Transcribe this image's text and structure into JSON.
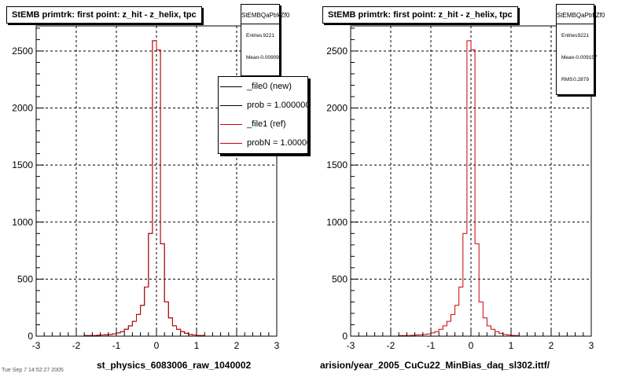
{
  "panels": [
    {
      "title": "StEMB primtrk: first point: z_hit - z_helix, tpc",
      "stats": {
        "name": "StEMBQaPtrkZf0",
        "rows": [
          {
            "label": "Entries",
            "value": "9221"
          },
          {
            "label": "Mean",
            "value": "-0.009093"
          }
        ]
      },
      "xtitle": "st_physics_6083006_raw_1040002"
    },
    {
      "title": "StEMB primtrk: first point: z_hit - z_helix, tpc",
      "stats": {
        "name": "StEMBQaPtrkZf0",
        "rows": [
          {
            "label": "Entries",
            "value": "9221"
          },
          {
            "label": "Mean",
            "value": "-0.009157"
          },
          {
            "label": "RMS",
            "value": "0.2879"
          }
        ]
      },
      "xtitle": "arision/year_2005_CuCu22_MinBias_daq_sl302.ittf/"
    }
  ],
  "legend": {
    "entries": [
      {
        "label": "_file0 (new)",
        "color": "#000000"
      },
      {
        "label": "prob = 1.000000",
        "color": "#000000"
      },
      {
        "label": "_file1 (ref)",
        "color": "#cc0000"
      },
      {
        "label": "probN = 1.000000",
        "color": "#cc0000"
      }
    ]
  },
  "corner_text": "Tue Sep 7 14:52:27 2005",
  "chart_data": [
    {
      "type": "line",
      "title": "StEMB primtrk: first point: z_hit - z_helix, tpc",
      "xlabel": "st_physics_6083006_raw_1040002",
      "ylabel": "",
      "xlim": [
        -3,
        3
      ],
      "ylim": [
        0,
        2720
      ],
      "xticks": [
        -3,
        -2,
        -1,
        0,
        1,
        2,
        3
      ],
      "yticks": [
        0,
        500,
        1000,
        1500,
        2000,
        2500
      ],
      "grid": true,
      "bin_width": 0.1,
      "series": [
        {
          "name": "_file0 (new)",
          "color": "#000000",
          "x": [
            -3.0,
            -2.9,
            -2.8,
            -2.7,
            -2.6,
            -2.5,
            -2.4,
            -2.3,
            -2.2,
            -2.1,
            -2.0,
            -1.9,
            -1.8,
            -1.7,
            -1.6,
            -1.5,
            -1.4,
            -1.3,
            -1.2,
            -1.1,
            -1.0,
            -0.9,
            -0.8,
            -0.7,
            -0.6,
            -0.5,
            -0.4,
            -0.3,
            -0.2,
            -0.1,
            0.0,
            0.1,
            0.2,
            0.3,
            0.4,
            0.5,
            0.6,
            0.7,
            0.8,
            0.9,
            1.0,
            1.1,
            1.2,
            1.3,
            1.4,
            1.5,
            1.6,
            1.7,
            1.8,
            1.9,
            2.0,
            2.1,
            2.2,
            2.3,
            2.4,
            2.5,
            2.6,
            2.7,
            2.8,
            2.9
          ],
          "values": [
            0,
            0,
            0,
            0,
            0,
            0,
            0,
            0,
            0,
            0,
            0,
            0,
            5,
            5,
            5,
            8,
            10,
            12,
            15,
            20,
            28,
            40,
            60,
            90,
            130,
            190,
            270,
            430,
            900,
            2590,
            2510,
            810,
            300,
            160,
            90,
            60,
            40,
            25,
            15,
            10,
            7,
            5,
            0,
            0,
            0,
            0,
            0,
            0,
            0,
            0,
            0,
            0,
            0,
            0,
            0,
            0,
            0,
            0,
            0,
            0
          ]
        },
        {
          "name": "_file1 (ref)",
          "color": "#cc0000",
          "x": [
            -3.0,
            -2.9,
            -2.8,
            -2.7,
            -2.6,
            -2.5,
            -2.4,
            -2.3,
            -2.2,
            -2.1,
            -2.0,
            -1.9,
            -1.8,
            -1.7,
            -1.6,
            -1.5,
            -1.4,
            -1.3,
            -1.2,
            -1.1,
            -1.0,
            -0.9,
            -0.8,
            -0.7,
            -0.6,
            -0.5,
            -0.4,
            -0.3,
            -0.2,
            -0.1,
            0.0,
            0.1,
            0.2,
            0.3,
            0.4,
            0.5,
            0.6,
            0.7,
            0.8,
            0.9,
            1.0,
            1.1,
            1.2,
            1.3,
            1.4,
            1.5,
            1.6,
            1.7,
            1.8,
            1.9,
            2.0,
            2.1,
            2.2,
            2.3,
            2.4,
            2.5,
            2.6,
            2.7,
            2.8,
            2.9
          ],
          "values": [
            0,
            0,
            0,
            0,
            0,
            0,
            0,
            0,
            0,
            0,
            0,
            0,
            5,
            5,
            5,
            8,
            10,
            12,
            15,
            20,
            28,
            40,
            60,
            90,
            130,
            190,
            270,
            430,
            900,
            2590,
            2510,
            810,
            300,
            160,
            90,
            60,
            40,
            25,
            15,
            10,
            7,
            5,
            0,
            0,
            0,
            0,
            0,
            0,
            0,
            0,
            0,
            0,
            0,
            0,
            0,
            0,
            0,
            0,
            0,
            0
          ]
        }
      ]
    },
    {
      "type": "line",
      "title": "StEMB primtrk: first point: z_hit - z_helix, tpc",
      "xlabel": "arision/year_2005_CuCu22_MinBias_daq_sl302.ittf/",
      "ylabel": "",
      "xlim": [
        -3,
        3
      ],
      "ylim": [
        0,
        2720
      ],
      "xticks": [
        -3,
        -2,
        -1,
        0,
        1,
        2,
        3
      ],
      "yticks": [
        0,
        500,
        1000,
        1500,
        2000,
        2500
      ],
      "grid": true,
      "bin_width": 0.1,
      "series": [
        {
          "name": "",
          "color": "#cc0000",
          "x": [
            -3.0,
            -2.9,
            -2.8,
            -2.7,
            -2.6,
            -2.5,
            -2.4,
            -2.3,
            -2.2,
            -2.1,
            -2.0,
            -1.9,
            -1.8,
            -1.7,
            -1.6,
            -1.5,
            -1.4,
            -1.3,
            -1.2,
            -1.1,
            -1.0,
            -0.9,
            -0.8,
            -0.7,
            -0.6,
            -0.5,
            -0.4,
            -0.3,
            -0.2,
            -0.1,
            0.0,
            0.1,
            0.2,
            0.3,
            0.4,
            0.5,
            0.6,
            0.7,
            0.8,
            0.9,
            1.0,
            1.1,
            1.2,
            1.3,
            1.4,
            1.5,
            1.6,
            1.7,
            1.8,
            1.9,
            2.0,
            2.1,
            2.2,
            2.3,
            2.4,
            2.5,
            2.6,
            2.7,
            2.8,
            2.9
          ],
          "values": [
            0,
            0,
            0,
            0,
            0,
            0,
            0,
            0,
            0,
            0,
            0,
            0,
            5,
            5,
            5,
            8,
            10,
            12,
            15,
            20,
            28,
            40,
            60,
            90,
            130,
            190,
            270,
            430,
            900,
            2590,
            2510,
            810,
            300,
            160,
            90,
            60,
            40,
            25,
            15,
            10,
            7,
            5,
            0,
            0,
            0,
            0,
            0,
            0,
            0,
            0,
            0,
            0,
            0,
            0,
            0,
            0,
            0,
            0,
            0,
            0
          ]
        }
      ]
    }
  ]
}
